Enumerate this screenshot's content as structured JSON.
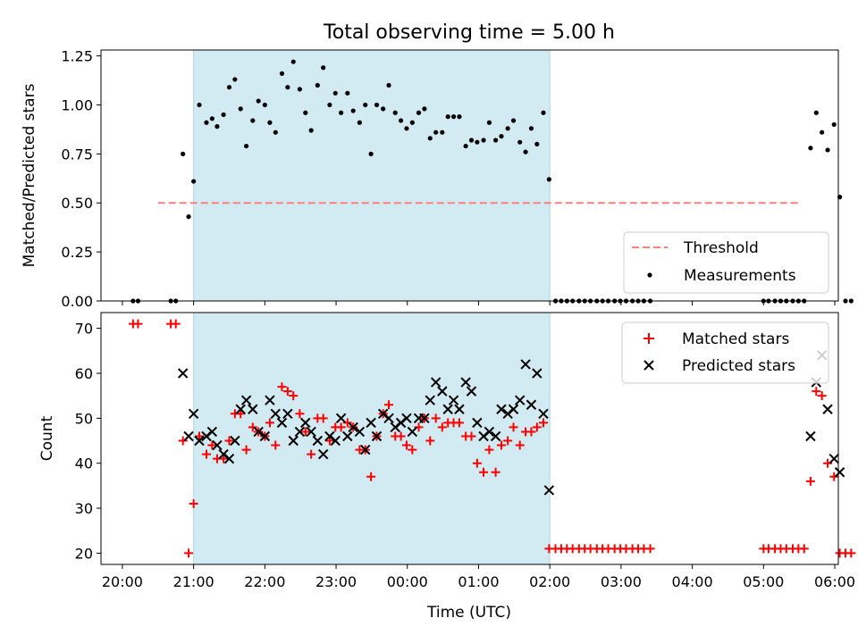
{
  "title": "Total observing time = 5.00 h",
  "chart_data": [
    {
      "type": "scatter",
      "ylabel": "Matched/Predicted stars",
      "xlabel": "",
      "x_ticks": [
        "20:00",
        "21:00",
        "22:00",
        "23:00",
        "00:00",
        "01:00",
        "02:00",
        "03:00",
        "04:00",
        "05:00",
        "06:00"
      ],
      "y_ticks": [
        "0.00",
        "0.25",
        "0.50",
        "0.75",
        "1.00",
        "1.25"
      ],
      "xlim": [
        -0.3,
        10.05
      ],
      "ylim": [
        0,
        1.28
      ],
      "shaded_region": {
        "from": 1.0,
        "to": 6.0,
        "color": "#add8e6"
      },
      "threshold": {
        "name": "Threshold",
        "value": 0.5,
        "x_from": 0.5,
        "x_to": 9.5,
        "color": "#ff7f7f"
      },
      "legend_position": "bottom-right",
      "series": [
        {
          "name": "Measurements",
          "marker": "dot",
          "color": "#000000",
          "points": [
            [
              0.15,
              0
            ],
            [
              0.22,
              0
            ],
            [
              0.68,
              0
            ],
            [
              0.75,
              0
            ],
            [
              0.85,
              0.75
            ],
            [
              0.93,
              0.43
            ],
            [
              1.0,
              0.61
            ],
            [
              1.08,
              1.0
            ],
            [
              1.18,
              0.91
            ],
            [
              1.26,
              0.93
            ],
            [
              1.33,
              0.89
            ],
            [
              1.42,
              0.95
            ],
            [
              1.5,
              1.09
            ],
            [
              1.58,
              1.13
            ],
            [
              1.66,
              0.98
            ],
            [
              1.74,
              0.79
            ],
            [
              1.83,
              0.92
            ],
            [
              1.91,
              1.02
            ],
            [
              2.0,
              1.0
            ],
            [
              2.07,
              0.91
            ],
            [
              2.15,
              0.86
            ],
            [
              2.24,
              1.16
            ],
            [
              2.32,
              1.09
            ],
            [
              2.4,
              1.22
            ],
            [
              2.49,
              1.08
            ],
            [
              2.57,
              0.96
            ],
            [
              2.65,
              0.87
            ],
            [
              2.74,
              1.1
            ],
            [
              2.82,
              1.19
            ],
            [
              2.91,
              1.0
            ],
            [
              2.99,
              1.06
            ],
            [
              3.07,
              0.96
            ],
            [
              3.16,
              1.06
            ],
            [
              3.24,
              0.97
            ],
            [
              3.33,
              0.91
            ],
            [
              3.41,
              1.0
            ],
            [
              3.49,
              0.75
            ],
            [
              3.57,
              1.0
            ],
            [
              3.66,
              0.98
            ],
            [
              3.74,
              1.1
            ],
            [
              3.83,
              0.96
            ],
            [
              3.91,
              0.92
            ],
            [
              3.99,
              0.88
            ],
            [
              4.07,
              0.91
            ],
            [
              4.16,
              0.96
            ],
            [
              4.24,
              0.98
            ],
            [
              4.32,
              0.83
            ],
            [
              4.4,
              0.86
            ],
            [
              4.49,
              0.86
            ],
            [
              4.57,
              0.94
            ],
            [
              4.65,
              0.94
            ],
            [
              4.73,
              0.94
            ],
            [
              4.82,
              0.79
            ],
            [
              4.9,
              0.82
            ],
            [
              4.98,
              0.81
            ],
            [
              5.07,
              0.82
            ],
            [
              5.15,
              0.91
            ],
            [
              5.24,
              0.82
            ],
            [
              5.32,
              0.84
            ],
            [
              5.41,
              0.88
            ],
            [
              5.49,
              0.92
            ],
            [
              5.58,
              0.81
            ],
            [
              5.66,
              0.76
            ],
            [
              5.74,
              0.88
            ],
            [
              5.82,
              0.8
            ],
            [
              5.91,
              0.96
            ],
            [
              5.99,
              0.62
            ],
            [
              6.08,
              0
            ],
            [
              6.16,
              0
            ],
            [
              6.24,
              0
            ],
            [
              6.32,
              0
            ],
            [
              6.41,
              0
            ],
            [
              6.49,
              0
            ],
            [
              6.57,
              0
            ],
            [
              6.66,
              0
            ],
            [
              6.74,
              0
            ],
            [
              6.82,
              0
            ],
            [
              6.91,
              0
            ],
            [
              6.99,
              0
            ],
            [
              7.07,
              0
            ],
            [
              7.16,
              0
            ],
            [
              7.24,
              0
            ],
            [
              7.32,
              0
            ],
            [
              7.41,
              0
            ],
            [
              9.0,
              0
            ],
            [
              9.07,
              0
            ],
            [
              9.16,
              0
            ],
            [
              9.24,
              0
            ],
            [
              9.32,
              0
            ],
            [
              9.41,
              0
            ],
            [
              9.49,
              0
            ],
            [
              9.57,
              0
            ],
            [
              9.66,
              0.78
            ],
            [
              9.74,
              0.96
            ],
            [
              9.82,
              0.86
            ],
            [
              9.9,
              0.77
            ],
            [
              9.99,
              0.9
            ],
            [
              10.07,
              0.53
            ],
            [
              10.15,
              0
            ],
            [
              10.23,
              0
            ]
          ]
        }
      ]
    },
    {
      "type": "scatter",
      "ylabel": "Count",
      "xlabel": "Time (UTC)",
      "x_ticks": [
        "20:00",
        "21:00",
        "22:00",
        "23:00",
        "00:00",
        "01:00",
        "02:00",
        "03:00",
        "04:00",
        "05:00",
        "06:00"
      ],
      "y_ticks": [
        "20",
        "30",
        "40",
        "50",
        "60",
        "70"
      ],
      "xlim": [
        -0.3,
        10.05
      ],
      "ylim": [
        17.5,
        73.5
      ],
      "shaded_region": {
        "from": 1.0,
        "to": 6.0,
        "color": "#add8e6"
      },
      "legend_position": "top-right",
      "series": [
        {
          "name": "Matched stars",
          "marker": "plus",
          "color": "#ff0000",
          "points": [
            [
              0.15,
              71
            ],
            [
              0.22,
              71
            ],
            [
              0.68,
              71
            ],
            [
              0.75,
              71
            ],
            [
              0.85,
              45
            ],
            [
              0.93,
              20
            ],
            [
              1.0,
              31
            ],
            [
              1.08,
              46
            ],
            [
              1.18,
              42
            ],
            [
              1.26,
              44
            ],
            [
              1.33,
              41
            ],
            [
              1.42,
              41
            ],
            [
              1.5,
              45
            ],
            [
              1.58,
              51
            ],
            [
              1.66,
              51
            ],
            [
              1.74,
              43
            ],
            [
              1.83,
              48
            ],
            [
              1.91,
              47
            ],
            [
              2.0,
              46
            ],
            [
              2.07,
              49
            ],
            [
              2.15,
              44
            ],
            [
              2.24,
              57
            ],
            [
              2.32,
              56
            ],
            [
              2.4,
              55
            ],
            [
              2.49,
              51
            ],
            [
              2.57,
              47
            ],
            [
              2.65,
              42
            ],
            [
              2.74,
              50
            ],
            [
              2.82,
              50
            ],
            [
              2.91,
              45
            ],
            [
              2.99,
              48
            ],
            [
              3.07,
              48
            ],
            [
              3.16,
              49
            ],
            [
              3.24,
              48
            ],
            [
              3.33,
              43
            ],
            [
              3.41,
              43
            ],
            [
              3.49,
              37
            ],
            [
              3.57,
              46
            ],
            [
              3.66,
              51
            ],
            [
              3.74,
              53
            ],
            [
              3.83,
              46
            ],
            [
              3.91,
              46
            ],
            [
              3.99,
              44
            ],
            [
              4.07,
              43
            ],
            [
              4.16,
              48
            ],
            [
              4.24,
              50
            ],
            [
              4.32,
              45
            ],
            [
              4.4,
              50
            ],
            [
              4.49,
              48
            ],
            [
              4.57,
              49
            ],
            [
              4.65,
              49
            ],
            [
              4.73,
              49
            ],
            [
              4.82,
              46
            ],
            [
              4.9,
              46
            ],
            [
              4.98,
              40
            ],
            [
              5.07,
              38
            ],
            [
              5.15,
              43
            ],
            [
              5.24,
              38
            ],
            [
              5.32,
              44
            ],
            [
              5.41,
              45
            ],
            [
              5.49,
              48
            ],
            [
              5.58,
              44
            ],
            [
              5.66,
              47
            ],
            [
              5.74,
              47
            ],
            [
              5.82,
              48
            ],
            [
              5.91,
              49
            ],
            [
              5.99,
              21
            ],
            [
              6.08,
              21
            ],
            [
              6.16,
              21
            ],
            [
              6.24,
              21
            ],
            [
              6.32,
              21
            ],
            [
              6.41,
              21
            ],
            [
              6.49,
              21
            ],
            [
              6.57,
              21
            ],
            [
              6.66,
              21
            ],
            [
              6.74,
              21
            ],
            [
              6.82,
              21
            ],
            [
              6.91,
              21
            ],
            [
              6.99,
              21
            ],
            [
              7.07,
              21
            ],
            [
              7.16,
              21
            ],
            [
              7.24,
              21
            ],
            [
              7.32,
              21
            ],
            [
              7.41,
              21
            ],
            [
              9.0,
              21
            ],
            [
              9.07,
              21
            ],
            [
              9.16,
              21
            ],
            [
              9.24,
              21
            ],
            [
              9.32,
              21
            ],
            [
              9.41,
              21
            ],
            [
              9.49,
              21
            ],
            [
              9.57,
              21
            ],
            [
              9.66,
              36
            ],
            [
              9.74,
              56
            ],
            [
              9.82,
              55
            ],
            [
              9.9,
              40
            ],
            [
              9.99,
              37
            ],
            [
              10.07,
              20
            ],
            [
              10.15,
              20
            ],
            [
              10.23,
              20
            ]
          ]
        },
        {
          "name": "Predicted stars",
          "marker": "x",
          "color": "#000000",
          "points": [
            [
              0.85,
              60
            ],
            [
              0.93,
              46
            ],
            [
              1.0,
              51
            ],
            [
              1.08,
              45
            ],
            [
              1.18,
              46
            ],
            [
              1.26,
              47
            ],
            [
              1.33,
              44
            ],
            [
              1.42,
              42
            ],
            [
              1.5,
              41
            ],
            [
              1.58,
              45
            ],
            [
              1.66,
              52
            ],
            [
              1.74,
              54
            ],
            [
              1.83,
              52
            ],
            [
              1.91,
              47
            ],
            [
              2.0,
              46
            ],
            [
              2.07,
              54
            ],
            [
              2.15,
              51
            ],
            [
              2.24,
              49
            ],
            [
              2.32,
              51
            ],
            [
              2.4,
              45
            ],
            [
              2.49,
              47
            ],
            [
              2.57,
              49
            ],
            [
              2.65,
              47
            ],
            [
              2.74,
              45
            ],
            [
              2.82,
              42
            ],
            [
              2.91,
              46
            ],
            [
              2.99,
              45
            ],
            [
              3.07,
              50
            ],
            [
              3.16,
              46
            ],
            [
              3.24,
              48
            ],
            [
              3.33,
              47
            ],
            [
              3.41,
              43
            ],
            [
              3.49,
              49
            ],
            [
              3.57,
              46
            ],
            [
              3.66,
              51
            ],
            [
              3.74,
              50
            ],
            [
              3.83,
              48
            ],
            [
              3.91,
              49
            ],
            [
              3.99,
              50
            ],
            [
              4.07,
              47
            ],
            [
              4.16,
              50
            ],
            [
              4.24,
              50
            ],
            [
              4.32,
              54
            ],
            [
              4.4,
              58
            ],
            [
              4.49,
              56
            ],
            [
              4.57,
              52
            ],
            [
              4.65,
              54
            ],
            [
              4.73,
              52
            ],
            [
              4.82,
              58
            ],
            [
              4.9,
              56
            ],
            [
              4.98,
              49
            ],
            [
              5.07,
              46
            ],
            [
              5.15,
              47
            ],
            [
              5.24,
              46
            ],
            [
              5.32,
              52
            ],
            [
              5.41,
              51
            ],
            [
              5.49,
              52
            ],
            [
              5.58,
              54
            ],
            [
              5.66,
              62
            ],
            [
              5.74,
              53
            ],
            [
              5.82,
              60
            ],
            [
              5.91,
              51
            ],
            [
              5.99,
              34
            ],
            [
              9.66,
              46
            ],
            [
              9.74,
              58
            ],
            [
              9.82,
              64
            ],
            [
              9.9,
              52
            ],
            [
              9.99,
              41
            ],
            [
              10.07,
              38
            ]
          ]
        }
      ]
    }
  ]
}
